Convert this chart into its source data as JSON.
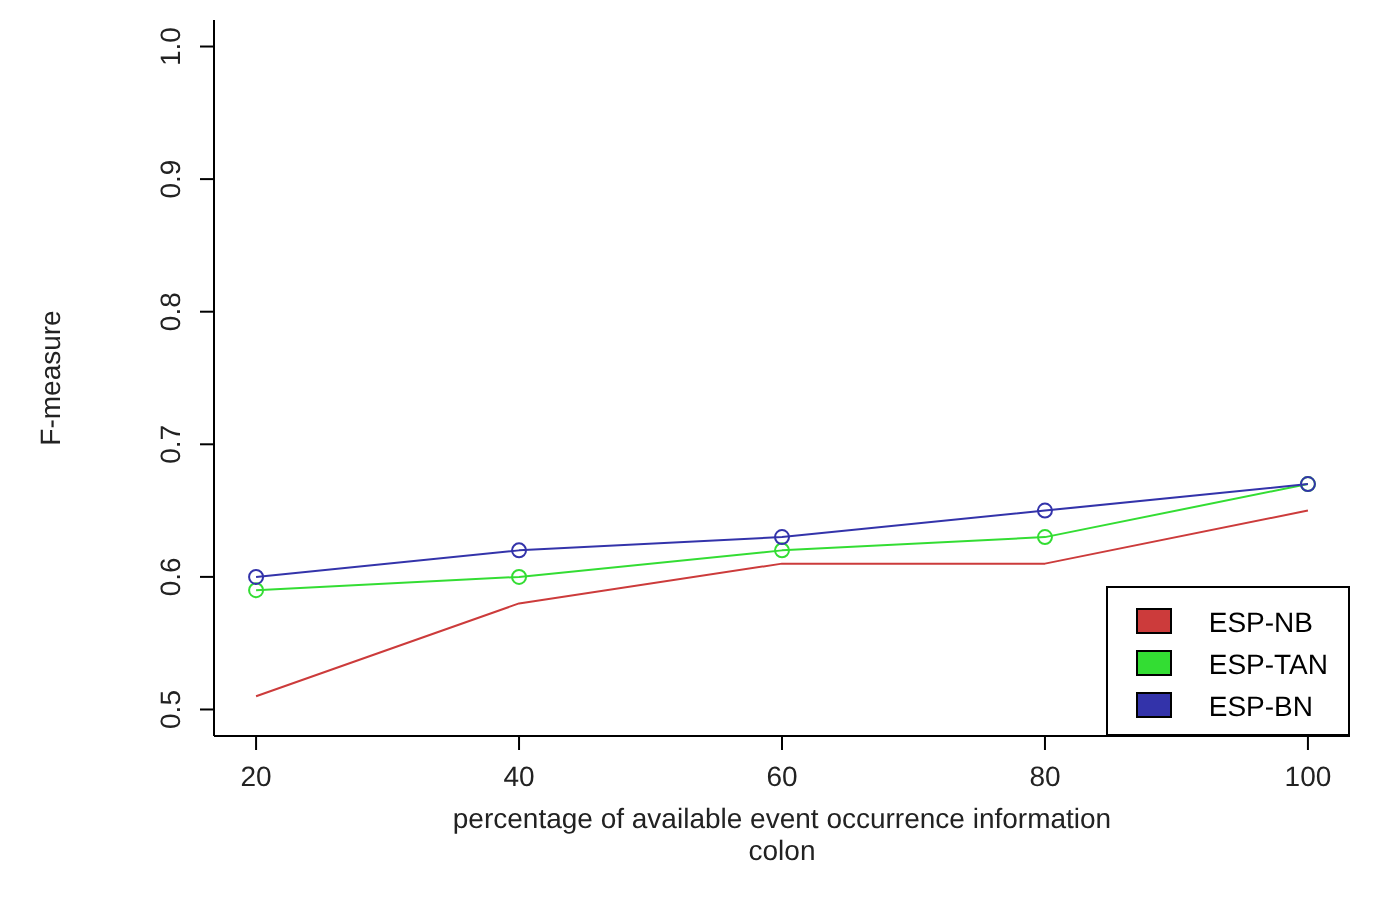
{
  "chart_data": {
    "type": "line",
    "xlabel": "percentage of available event occurrence information\ncolon",
    "ylabel": "F-measure",
    "x": [
      20,
      40,
      60,
      80,
      100
    ],
    "series": [
      {
        "name": "ESP-NB",
        "color": "#cc3b3b",
        "marker": "none",
        "values": [
          0.51,
          0.58,
          0.61,
          0.61,
          0.65
        ]
      },
      {
        "name": "ESP-TAN",
        "color": "#33dd33",
        "marker": "circle",
        "values": [
          0.59,
          0.6,
          0.62,
          0.63,
          0.67
        ]
      },
      {
        "name": "ESP-BN",
        "color": "#3333aa",
        "marker": "circle",
        "values": [
          0.6,
          0.62,
          0.63,
          0.65,
          0.67
        ]
      }
    ],
    "xlim": [
      16.8,
      103.2
    ],
    "xticks": [
      20,
      40,
      60,
      80,
      100
    ],
    "ylim": [
      0.48,
      1.02
    ],
    "yticks": [
      0.5,
      0.6,
      0.7,
      0.8,
      0.9,
      {
        "value": 1,
        "label": "1.0"
      }
    ],
    "grid": false,
    "legend": "bottom right"
  }
}
